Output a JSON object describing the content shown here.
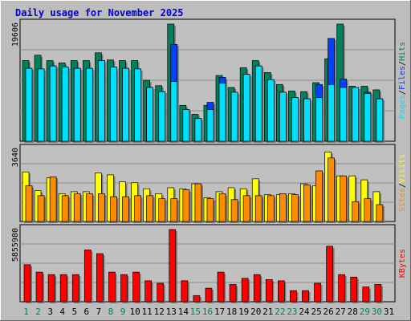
{
  "chart_data": [
    {
      "type": "bar",
      "title": "Daily usage for November 2025",
      "categories": [
        "1",
        "2",
        "3",
        "4",
        "5",
        "6",
        "7",
        "8",
        "9",
        "10",
        "11",
        "12",
        "13",
        "14",
        "15",
        "16",
        "17",
        "18",
        "19",
        "20",
        "21",
        "22",
        "23",
        "24",
        "25",
        "26",
        "27",
        "28",
        "29",
        "30",
        "31"
      ],
      "weekend_days": [
        "1",
        "2",
        "8",
        "9",
        "15",
        "16",
        "22",
        "23",
        "29",
        "30"
      ],
      "ymax_label": "19606",
      "ylim": [
        0,
        19606
      ],
      "legend": [
        "Pages",
        "Files",
        "Hits"
      ],
      "series": [
        {
          "name": "Hits",
          "color": "#00805c",
          "values": [
            13500,
            14400,
            13500,
            13100,
            13500,
            13500,
            14800,
            13600,
            13500,
            13500,
            10200,
            9300,
            19606,
            6000,
            4500,
            6000,
            11000,
            9000,
            12300,
            13500,
            11500,
            9500,
            8400,
            8300,
            9800,
            13800,
            19606,
            9200,
            9200,
            8600,
            0
          ]
        },
        {
          "name": "Files",
          "color": "#0040ff",
          "values": [
            12200,
            12100,
            12600,
            12400,
            12200,
            12200,
            13500,
            12400,
            12200,
            12100,
            9000,
            8300,
            16200,
            5300,
            3800,
            6500,
            10700,
            8200,
            11200,
            12600,
            10300,
            8200,
            7300,
            7100,
            9500,
            17200,
            10400,
            8300,
            8200,
            7100,
            0
          ]
        },
        {
          "name": "Pages",
          "color": "#00e0ff",
          "values": [
            12200,
            12100,
            12600,
            12400,
            12200,
            12200,
            13500,
            12400,
            12200,
            12100,
            9000,
            8300,
            10000,
            5300,
            3800,
            5300,
            9700,
            8200,
            11200,
            12600,
            10300,
            8200,
            7300,
            7100,
            7300,
            9500,
            9000,
            9000,
            8000,
            7100,
            0
          ]
        }
      ]
    },
    {
      "type": "bar",
      "categories": [
        "1",
        "2",
        "3",
        "4",
        "5",
        "6",
        "7",
        "8",
        "9",
        "10",
        "11",
        "12",
        "13",
        "14",
        "15",
        "16",
        "17",
        "18",
        "19",
        "20",
        "21",
        "22",
        "23",
        "24",
        "25",
        "26",
        "27",
        "28",
        "29",
        "30",
        "31"
      ],
      "ymax_label": "3640",
      "ylim": [
        0,
        3640
      ],
      "legend": [
        "Sites",
        "Visits"
      ],
      "series": [
        {
          "name": "Visits",
          "color": "#ffff00",
          "values": [
            2500,
            1550,
            2200,
            1400,
            1500,
            1500,
            2450,
            2350,
            2000,
            1950,
            1650,
            1400,
            1700,
            1650,
            1900,
            1200,
            1500,
            1700,
            1650,
            2150,
            1350,
            1350,
            1400,
            1900,
            1800,
            3500,
            2300,
            2300,
            2100,
            1500,
            0
          ]
        },
        {
          "name": "Sites",
          "color": "#ff8c00",
          "values": [
            1800,
            1300,
            2250,
            1300,
            1400,
            1400,
            1400,
            1250,
            1250,
            1300,
            1300,
            1150,
            1150,
            1600,
            1900,
            1150,
            1400,
            1100,
            1300,
            1300,
            1300,
            1400,
            1350,
            1850,
            2550,
            3200,
            2300,
            1000,
            1150,
            850,
            0
          ]
        }
      ]
    },
    {
      "type": "bar",
      "categories": [
        "1",
        "2",
        "3",
        "4",
        "5",
        "6",
        "7",
        "8",
        "9",
        "10",
        "11",
        "12",
        "13",
        "14",
        "15",
        "16",
        "17",
        "18",
        "19",
        "20",
        "21",
        "22",
        "23",
        "24",
        "25",
        "26",
        "27",
        "28",
        "29",
        "30",
        "31"
      ],
      "ymax_label": "5855980",
      "ylim": [
        0,
        5855980
      ],
      "legend": [
        "KBytes"
      ],
      "series": [
        {
          "name": "KBytes",
          "color": "#ff0000",
          "values": [
            3000000,
            2400000,
            2200000,
            2200000,
            2200000,
            4200000,
            3900000,
            2400000,
            2200000,
            2400000,
            1700000,
            1500000,
            5855980,
            1700000,
            500000,
            1100000,
            2400000,
            1400000,
            1900000,
            2200000,
            1800000,
            1700000,
            900000,
            900000,
            1500000,
            4500000,
            2200000,
            2000000,
            1200000,
            1400000,
            0
          ]
        }
      ]
    }
  ]
}
